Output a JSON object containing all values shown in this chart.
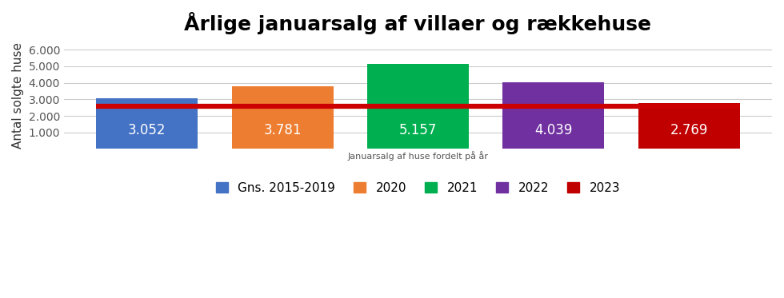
{
  "title": "Årlige januarsalg af villaer og rækkehuse",
  "xlabel": "Januarsalg af huse fordelt på år",
  "ylabel": "Antal solgte huse",
  "categories": [
    "Gns. 2015-2019",
    "2020",
    "2021",
    "2022",
    "2023"
  ],
  "values": [
    3052,
    3781,
    5157,
    4039,
    2769
  ],
  "bar_colors": [
    "#4472C4",
    "#ED7D31",
    "#00B050",
    "#7030A0",
    "#C00000"
  ],
  "label_texts": [
    "3.052",
    "3.781",
    "5.157",
    "4.039",
    "2.769"
  ],
  "red_line_y": 2600,
  "ylim": [
    0,
    6500
  ],
  "yticks": [
    1000,
    2000,
    3000,
    4000,
    5000,
    6000
  ],
  "ytick_labels": [
    "1.000",
    "2.000",
    "3.000",
    "4.000",
    "5.000",
    "6.000"
  ],
  "background_color": "#FFFFFF",
  "grid_color": "#CCCCCC",
  "title_fontsize": 18,
  "label_fontsize": 12,
  "legend_fontsize": 11,
  "xlabel_fontsize": 8,
  "ylabel_fontsize": 11
}
